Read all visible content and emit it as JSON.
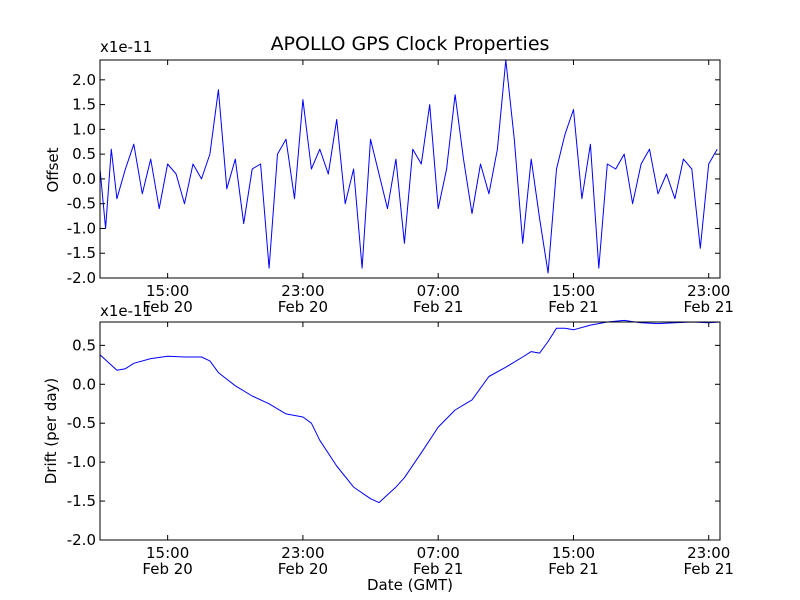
{
  "chart_data": [
    {
      "type": "line",
      "title": "APOLLO GPS Clock Properties",
      "ylabel": "Offset",
      "xlabel": "",
      "y_scale_label": "x1e-11",
      "xlim": [
        "2012-02-20T11:00",
        "2012-02-21T23:40"
      ],
      "ylim": [
        -2.0,
        2.4
      ],
      "yticks": [
        "-2.0",
        "-1.5",
        "-1.0",
        "-0.5",
        "0.0",
        "0.5",
        "1.0",
        "1.5",
        "2.0"
      ],
      "xticks": [
        {
          "time": "15:00",
          "date": "Feb 20"
        },
        {
          "time": "23:00",
          "date": "Feb 20"
        },
        {
          "time": "07:00",
          "date": "Feb 21"
        },
        {
          "time": "15:00",
          "date": "Feb 21"
        },
        {
          "time": "23:00",
          "date": "Feb 21"
        }
      ],
      "grid": false,
      "line_color": "#0000ff",
      "series": [
        {
          "x": [
            "2012-02-20T11:00",
            "2012-02-20T11:20",
            "2012-02-20T11:40",
            "2012-02-20T12:00",
            "2012-02-20T12:30",
            "2012-02-20T13:00",
            "2012-02-20T13:30",
            "2012-02-20T14:00",
            "2012-02-20T14:30",
            "2012-02-20T15:00",
            "2012-02-20T15:30",
            "2012-02-20T16:00",
            "2012-02-20T16:30",
            "2012-02-20T17:00",
            "2012-02-20T17:30",
            "2012-02-20T18:00",
            "2012-02-20T18:30",
            "2012-02-20T19:00",
            "2012-02-20T19:30",
            "2012-02-20T20:00",
            "2012-02-20T20:30",
            "2012-02-20T21:00",
            "2012-02-20T21:30",
            "2012-02-20T22:00",
            "2012-02-20T22:30",
            "2012-02-20T23:00",
            "2012-02-20T23:30",
            "2012-02-21T00:00",
            "2012-02-21T00:30",
            "2012-02-21T01:00",
            "2012-02-21T01:30",
            "2012-02-21T02:00",
            "2012-02-21T02:30",
            "2012-02-21T03:00",
            "2012-02-21T03:30",
            "2012-02-21T04:00",
            "2012-02-21T04:30",
            "2012-02-21T05:00",
            "2012-02-21T05:30",
            "2012-02-21T06:00",
            "2012-02-21T06:30",
            "2012-02-21T07:00",
            "2012-02-21T07:30",
            "2012-02-21T08:00",
            "2012-02-21T08:30",
            "2012-02-21T09:00",
            "2012-02-21T09:30",
            "2012-02-21T10:00",
            "2012-02-21T10:30",
            "2012-02-21T11:00",
            "2012-02-21T11:30",
            "2012-02-21T12:00",
            "2012-02-21T12:30",
            "2012-02-21T13:00",
            "2012-02-21T13:30",
            "2012-02-21T14:00",
            "2012-02-21T14:30",
            "2012-02-21T15:00",
            "2012-02-21T15:30",
            "2012-02-21T16:00",
            "2012-02-21T16:30",
            "2012-02-21T17:00",
            "2012-02-21T17:30",
            "2012-02-21T18:00",
            "2012-02-21T18:30",
            "2012-02-21T19:00",
            "2012-02-21T19:30",
            "2012-02-21T20:00",
            "2012-02-21T20:30",
            "2012-02-21T21:00",
            "2012-02-21T21:30",
            "2012-02-21T22:00",
            "2012-02-21T22:30",
            "2012-02-21T23:00",
            "2012-02-21T23:30"
          ],
          "y": [
            0.2,
            -1.0,
            0.6,
            -0.4,
            0.2,
            0.7,
            -0.3,
            0.4,
            -0.6,
            0.3,
            0.1,
            -0.5,
            0.3,
            0.0,
            0.5,
            1.8,
            -0.2,
            0.4,
            -0.9,
            0.2,
            0.3,
            -1.8,
            0.5,
            0.8,
            -0.4,
            1.6,
            0.2,
            0.6,
            0.1,
            1.2,
            -0.5,
            0.2,
            -1.8,
            0.8,
            0.1,
            -0.6,
            0.4,
            -1.3,
            0.6,
            0.3,
            1.5,
            -0.6,
            0.2,
            1.7,
            0.4,
            -0.7,
            0.3,
            -0.3,
            0.6,
            2.4,
            0.8,
            -1.3,
            0.4,
            -0.8,
            -1.9,
            0.2,
            0.9,
            1.4,
            -0.4,
            0.7,
            -1.8,
            0.3,
            0.2,
            0.5,
            -0.5,
            0.3,
            0.6,
            -0.3,
            0.1,
            -0.4,
            0.4,
            0.2,
            -1.4,
            0.3,
            0.6
          ]
        }
      ]
    },
    {
      "type": "line",
      "title": "",
      "ylabel": "Drift (per day)",
      "xlabel": "Date (GMT)",
      "y_scale_label": "x1e-11",
      "xlim": [
        "2012-02-20T11:00",
        "2012-02-21T23:40"
      ],
      "ylim": [
        -2.0,
        0.8
      ],
      "yticks": [
        "-2.0",
        "-1.5",
        "-1.0",
        "-0.5",
        "0.0",
        "0.5"
      ],
      "xticks": [
        {
          "time": "15:00",
          "date": "Feb 20"
        },
        {
          "time": "23:00",
          "date": "Feb 20"
        },
        {
          "time": "07:00",
          "date": "Feb 21"
        },
        {
          "time": "15:00",
          "date": "Feb 21"
        },
        {
          "time": "23:00",
          "date": "Feb 21"
        }
      ],
      "grid": false,
      "line_color": "#0000ff",
      "series": [
        {
          "x": [
            "2012-02-20T11:00",
            "2012-02-20T12:00",
            "2012-02-20T12:30",
            "2012-02-20T13:00",
            "2012-02-20T14:00",
            "2012-02-20T15:00",
            "2012-02-20T16:00",
            "2012-02-20T17:00",
            "2012-02-20T17:30",
            "2012-02-20T18:00",
            "2012-02-20T19:00",
            "2012-02-20T20:00",
            "2012-02-20T21:00",
            "2012-02-20T22:00",
            "2012-02-20T23:00",
            "2012-02-20T23:30",
            "2012-02-21T00:00",
            "2012-02-21T01:00",
            "2012-02-21T02:00",
            "2012-02-21T03:00",
            "2012-02-21T03:30",
            "2012-02-21T04:00",
            "2012-02-21T04:30",
            "2012-02-21T05:00",
            "2012-02-21T06:00",
            "2012-02-21T07:00",
            "2012-02-21T08:00",
            "2012-02-21T09:00",
            "2012-02-21T10:00",
            "2012-02-21T11:00",
            "2012-02-21T12:00",
            "2012-02-21T12:30",
            "2012-02-21T13:00",
            "2012-02-21T13:30",
            "2012-02-21T14:00",
            "2012-02-21T14:30",
            "2012-02-21T15:00",
            "2012-02-21T16:00",
            "2012-02-21T17:00",
            "2012-02-21T18:00",
            "2012-02-21T19:00",
            "2012-02-21T20:00",
            "2012-02-21T21:00",
            "2012-02-21T22:00",
            "2012-02-21T23:00",
            "2012-02-21T23:40"
          ],
          "y": [
            0.38,
            0.18,
            0.2,
            0.27,
            0.33,
            0.36,
            0.35,
            0.35,
            0.3,
            0.15,
            -0.02,
            -0.15,
            -0.25,
            -0.38,
            -0.42,
            -0.5,
            -0.72,
            -1.05,
            -1.32,
            -1.47,
            -1.52,
            -1.42,
            -1.32,
            -1.2,
            -0.88,
            -0.55,
            -0.33,
            -0.2,
            0.1,
            0.22,
            0.35,
            0.42,
            0.4,
            0.55,
            0.72,
            0.72,
            0.7,
            0.76,
            0.8,
            0.82,
            0.79,
            0.78,
            0.79,
            0.8,
            0.79,
            0.8
          ]
        }
      ]
    }
  ]
}
